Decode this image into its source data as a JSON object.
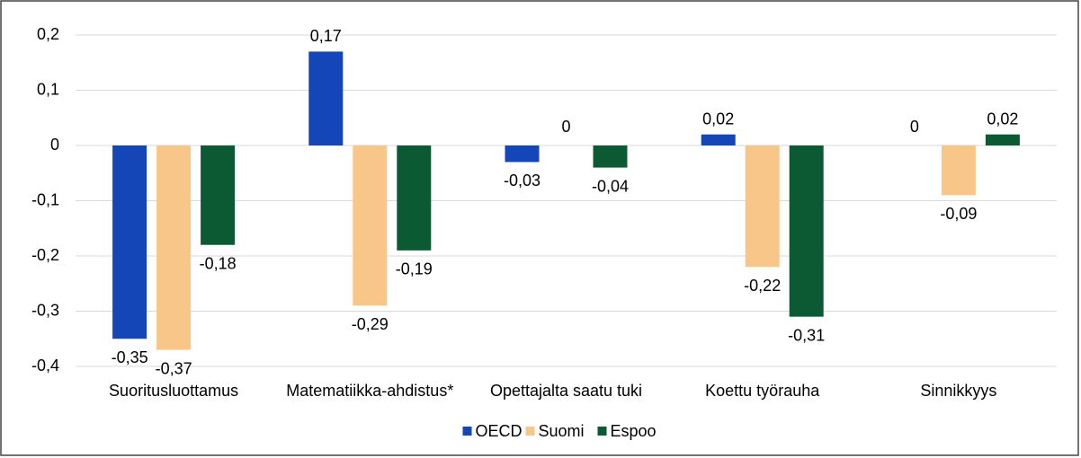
{
  "chart_data": {
    "type": "bar",
    "categories": [
      "Suoritusluottamus",
      "Matematiikka-ahdistus*",
      "Opettajalta saatu tuki",
      "Koettu työrauha",
      "Sinnikkyys"
    ],
    "series": [
      {
        "name": "OECD",
        "color": "#1446b8",
        "values": [
          -0.35,
          0.17,
          -0.03,
          0.02,
          0
        ],
        "value_labels": [
          "-0,35",
          "0,17",
          "-0,03",
          "0,02",
          "0"
        ]
      },
      {
        "name": "Suomi",
        "color": "#f9c68a",
        "values": [
          -0.37,
          -0.29,
          0,
          -0.22,
          -0.09
        ],
        "value_labels": [
          "-0,37",
          "-0,29",
          "0",
          "-0,22",
          "-0,09"
        ]
      },
      {
        "name": "Espoo",
        "color": "#0b5a34",
        "values": [
          -0.18,
          -0.19,
          -0.04,
          -0.31,
          0.02
        ],
        "value_labels": [
          "-0,18",
          "-0,19",
          "-0,04",
          "-0,31",
          "0,02"
        ]
      }
    ],
    "ylim": [
      -0.4,
      0.2
    ],
    "yticks": [
      {
        "value": 0.2,
        "label": "0,2"
      },
      {
        "value": 0.1,
        "label": "0,1"
      },
      0,
      {
        "value": -0.1,
        "label": "-0,1"
      },
      {
        "value": -0.2,
        "label": "-0,2"
      },
      {
        "value": -0.3,
        "label": "-0,3"
      },
      {
        "value": -0.4,
        "label": "-0,4"
      }
    ],
    "grid": true,
    "legend": "bottom"
  }
}
